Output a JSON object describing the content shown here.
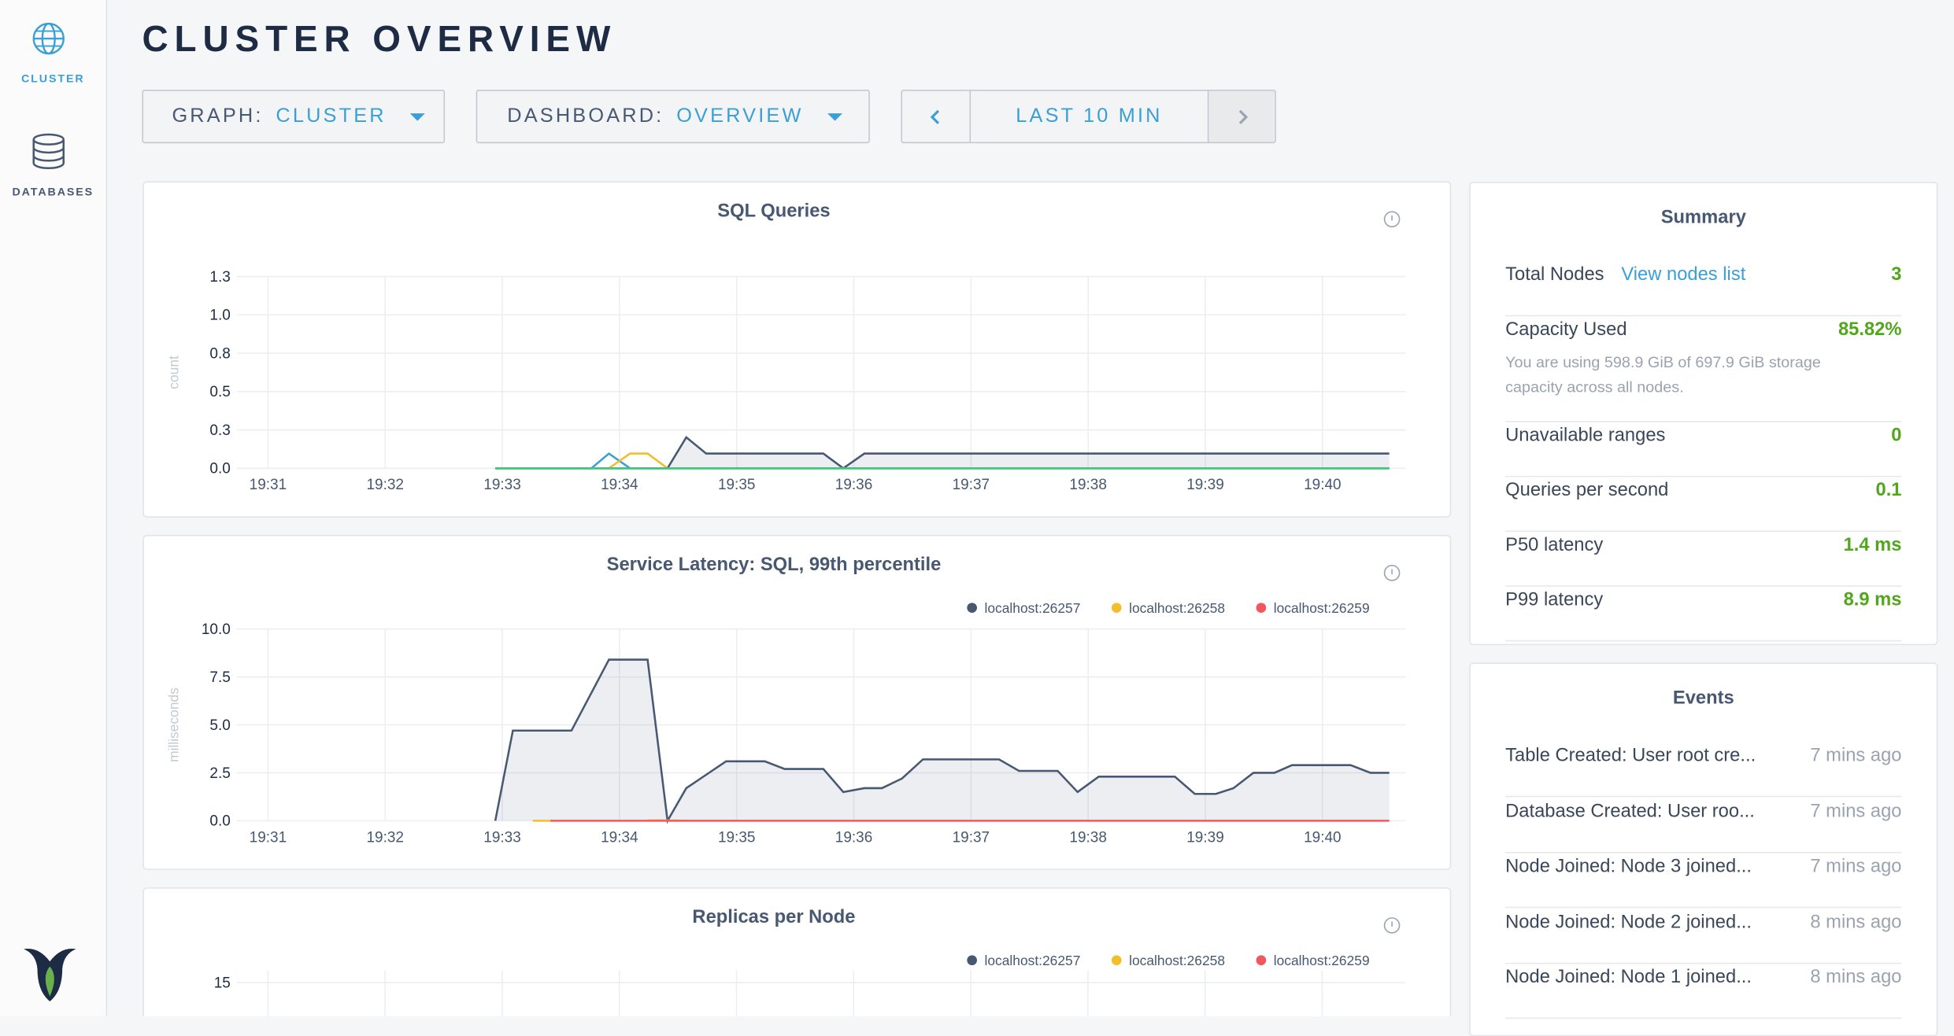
{
  "sidebar": {
    "items": [
      "CLUSTER",
      "DATABASES"
    ]
  },
  "header": {
    "title": "CLUSTER OVERVIEW"
  },
  "controls": {
    "graph": {
      "label": "GRAPH:",
      "value": "CLUSTER"
    },
    "dashboard": {
      "label": "DASHBOARD:",
      "value": "OVERVIEW"
    },
    "time": "LAST 10 MIN"
  },
  "charts": [
    {
      "type": "line",
      "title": "SQL Queries",
      "y_label": "count",
      "ylim": [
        0,
        1.3
      ],
      "yticks": [
        {
          "value": 0,
          "label": "0.0"
        },
        {
          "value": 0.26,
          "label": "0.3"
        },
        {
          "value": 0.52,
          "label": "0.5"
        },
        {
          "value": 0.78,
          "label": "0.8"
        },
        {
          "value": 1.04,
          "label": "1.0"
        },
        1.3
      ],
      "xlim": [
        1170.84,
        1180.71
      ],
      "xticks": [
        {
          "value": 1171,
          "label": "19:31"
        },
        {
          "value": 1172,
          "label": "19:32"
        },
        {
          "value": 1173,
          "label": "19:33"
        },
        {
          "value": 1174,
          "label": "19:34"
        },
        {
          "value": 1175,
          "label": "19:35"
        },
        {
          "value": 1176,
          "label": "19:36"
        },
        {
          "value": 1177,
          "label": "19:37"
        },
        {
          "value": 1178,
          "label": "19:38"
        },
        {
          "value": 1179,
          "label": "19:39"
        },
        {
          "value": 1180,
          "label": "19:40"
        }
      ],
      "grid": true,
      "x": [
        1172.94,
        1173.76,
        1173.91,
        1174.09,
        1174.24,
        1174.41,
        1174.57,
        1174.74,
        1175.74,
        1175.91,
        1176.09,
        1180.57
      ],
      "series": [
        {
          "color": "#475872",
          "area": true,
          "values": [
            0,
            0,
            0,
            0,
            0,
            0,
            0.21,
            0.1,
            0.1,
            0,
            0.1,
            0.1
          ]
        },
        {
          "color": "#3a9fd6",
          "values": [
            0,
            0,
            0.1,
            0,
            0,
            0,
            0,
            0,
            0,
            0,
            0,
            0
          ]
        },
        {
          "color": "#f2be2c",
          "values": [
            0,
            0,
            0,
            0.1,
            0.1,
            0,
            0,
            0,
            0,
            0,
            0,
            0
          ]
        },
        {
          "color": "#3fc77d",
          "values": [
            0,
            0,
            0,
            0,
            0,
            0,
            0,
            0,
            0,
            0,
            0,
            0
          ]
        }
      ]
    },
    {
      "type": "line",
      "title": "Service Latency: SQL, 99th percentile",
      "y_label": "milliseconds",
      "ylim": [
        0,
        10
      ],
      "yticks": [
        {
          "value": 0,
          "label": "0.0"
        },
        {
          "value": 2.5,
          "label": "2.5"
        },
        {
          "value": 5,
          "label": "5.0"
        },
        {
          "value": 7.5,
          "label": "7.5"
        },
        {
          "value": 10,
          "label": "10.0"
        }
      ],
      "xlim": [
        1170.84,
        1180.71
      ],
      "xticks": [
        {
          "value": 1171,
          "label": "19:31"
        },
        {
          "value": 1172,
          "label": "19:32"
        },
        {
          "value": 1173,
          "label": "19:33"
        },
        {
          "value": 1174,
          "label": "19:34"
        },
        {
          "value": 1175,
          "label": "19:35"
        },
        {
          "value": 1176,
          "label": "19:36"
        },
        {
          "value": 1177,
          "label": "19:37"
        },
        {
          "value": 1178,
          "label": "19:38"
        },
        {
          "value": 1179,
          "label": "19:39"
        },
        {
          "value": 1180,
          "label": "19:40"
        }
      ],
      "grid": true,
      "x": [
        1172.94,
        1173.09,
        1173.26,
        1173.41,
        1173.59,
        1173.91,
        1174.24,
        1174.41,
        1174.57,
        1174.74,
        1174.91,
        1175.24,
        1175.41,
        1175.74,
        1175.91,
        1176.09,
        1176.24,
        1176.41,
        1176.59,
        1177.24,
        1177.41,
        1177.74,
        1177.91,
        1178.09,
        1178.74,
        1178.91,
        1179.09,
        1179.24,
        1179.41,
        1179.59,
        1179.74,
        1180.24,
        1180.41,
        1180.57
      ],
      "series": [
        {
          "name": "localhost:26257",
          "color": "#475872",
          "area": true,
          "values": [
            0,
            4.7,
            4.7,
            4.7,
            4.7,
            8.4,
            8.4,
            0,
            1.7,
            2.4,
            3.1,
            3.1,
            2.7,
            2.7,
            1.5,
            1.7,
            1.7,
            2.2,
            3.2,
            3.2,
            2.6,
            2.6,
            1.5,
            2.3,
            2.3,
            1.4,
            1.4,
            1.7,
            2.5,
            2.5,
            2.9,
            2.9,
            2.5,
            2.5
          ]
        },
        {
          "name": "localhost:26258",
          "color": "#f2be2c",
          "values": [
            null,
            null,
            0,
            0,
            null,
            null,
            0.02,
            0.02,
            0,
            null,
            null,
            null,
            null,
            null,
            null,
            null,
            null,
            null,
            null,
            null,
            null,
            null,
            null,
            null,
            null,
            null,
            null,
            null,
            null,
            null,
            null,
            null,
            null,
            null
          ]
        },
        {
          "name": "localhost:26259",
          "color": "#f5555d",
          "values": [
            null,
            null,
            null,
            0,
            0,
            0,
            0,
            0,
            0,
            0,
            0,
            0,
            0,
            0,
            0,
            0,
            0,
            0,
            0,
            0,
            0,
            0,
            0,
            0,
            0,
            0,
            0,
            0,
            0,
            0,
            0,
            0,
            0,
            0
          ]
        }
      ]
    },
    {
      "type": "line",
      "title": "Replicas per Node",
      "yticks": [
        15
      ],
      "grid": true,
      "series": [
        {
          "name": "localhost:26257",
          "color": "#475872"
        },
        {
          "name": "localhost:26258",
          "color": "#f2be2c"
        },
        {
          "name": "localhost:26259",
          "color": "#f5555d"
        }
      ]
    }
  ],
  "summary": {
    "title": "Summary",
    "rows": [
      {
        "label": "Total Nodes",
        "link": "View nodes list",
        "value": "3"
      },
      {
        "label": "Capacity Used",
        "value": "85.82%",
        "note": "You are using 598.9 GiB of 697.9 GiB storage capacity across all nodes."
      },
      {
        "label": "Unavailable ranges",
        "value": "0"
      },
      {
        "label": "Queries per second",
        "value": "0.1"
      },
      {
        "label": "P50 latency",
        "value": "1.4 ms"
      },
      {
        "label": "P99 latency",
        "value": "8.9 ms"
      }
    ]
  },
  "events": {
    "title": "Events",
    "rows": [
      {
        "text": "Table Created: User root cre...",
        "time": "7 mins ago"
      },
      {
        "text": "Database Created: User roo...",
        "time": "7 mins ago"
      },
      {
        "text": "Node Joined: Node 3 joined...",
        "time": "7 mins ago"
      },
      {
        "text": "Node Joined: Node 2 joined...",
        "time": "8 mins ago"
      },
      {
        "text": "Node Joined: Node 1 joined...",
        "time": "8 mins ago"
      }
    ]
  }
}
